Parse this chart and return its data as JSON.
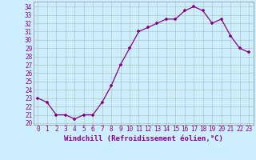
{
  "hours": [
    0,
    1,
    2,
    3,
    4,
    5,
    6,
    7,
    8,
    9,
    10,
    11,
    12,
    13,
    14,
    15,
    16,
    17,
    18,
    19,
    20,
    21,
    22,
    23
  ],
  "values": [
    23.0,
    22.5,
    21.0,
    21.0,
    20.5,
    21.0,
    21.0,
    22.5,
    24.5,
    27.0,
    29.0,
    31.0,
    31.5,
    32.0,
    32.5,
    32.5,
    33.5,
    34.0,
    33.5,
    32.0,
    32.5,
    30.5,
    29.0,
    28.5
  ],
  "line_color": "#880088",
  "marker": "+",
  "bg_color": "#cceeff",
  "grid_color": "#aabbaa",
  "xlabel": "Windchill (Refroidissement éolien,°C)",
  "ylabel_ticks": [
    20,
    21,
    22,
    23,
    24,
    25,
    26,
    27,
    28,
    29,
    30,
    31,
    32,
    33,
    34
  ],
  "ylim": [
    19.8,
    34.6
  ],
  "xlim": [
    -0.5,
    23.5
  ],
  "tick_color": "#880088",
  "xlabel_color": "#880088",
  "xlabel_fontsize": 6.5,
  "tick_fontsize": 5.5
}
